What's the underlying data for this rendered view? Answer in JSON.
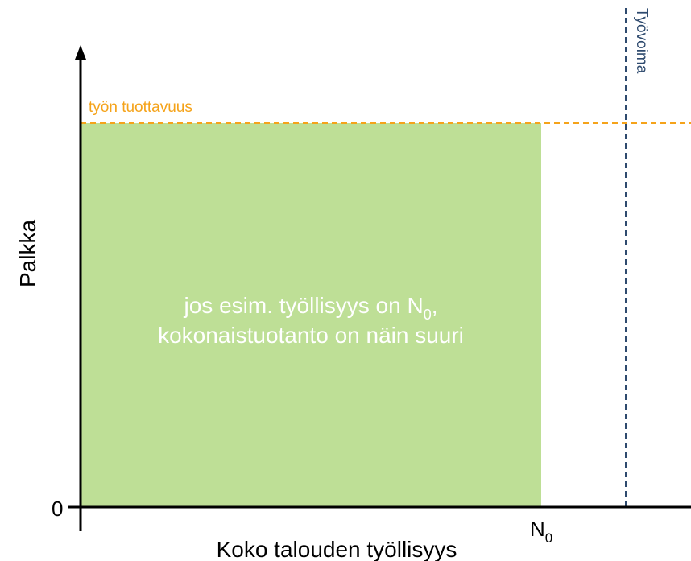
{
  "axes": {
    "x_label": "Koko talouden työllisyys",
    "y_label": "Palkka",
    "origin_label": "0"
  },
  "lines": {
    "productivity": "työn tuottavuus",
    "labor_force": "Työvoima"
  },
  "markers": {
    "n0": {
      "base": "N",
      "subscript": "0"
    }
  },
  "area": {
    "line1": {
      "before": "jos esim. työllisyys on N",
      "subscript": "0",
      "after": ","
    },
    "line2": "kokonaistuotanto on näin suuri"
  }
}
